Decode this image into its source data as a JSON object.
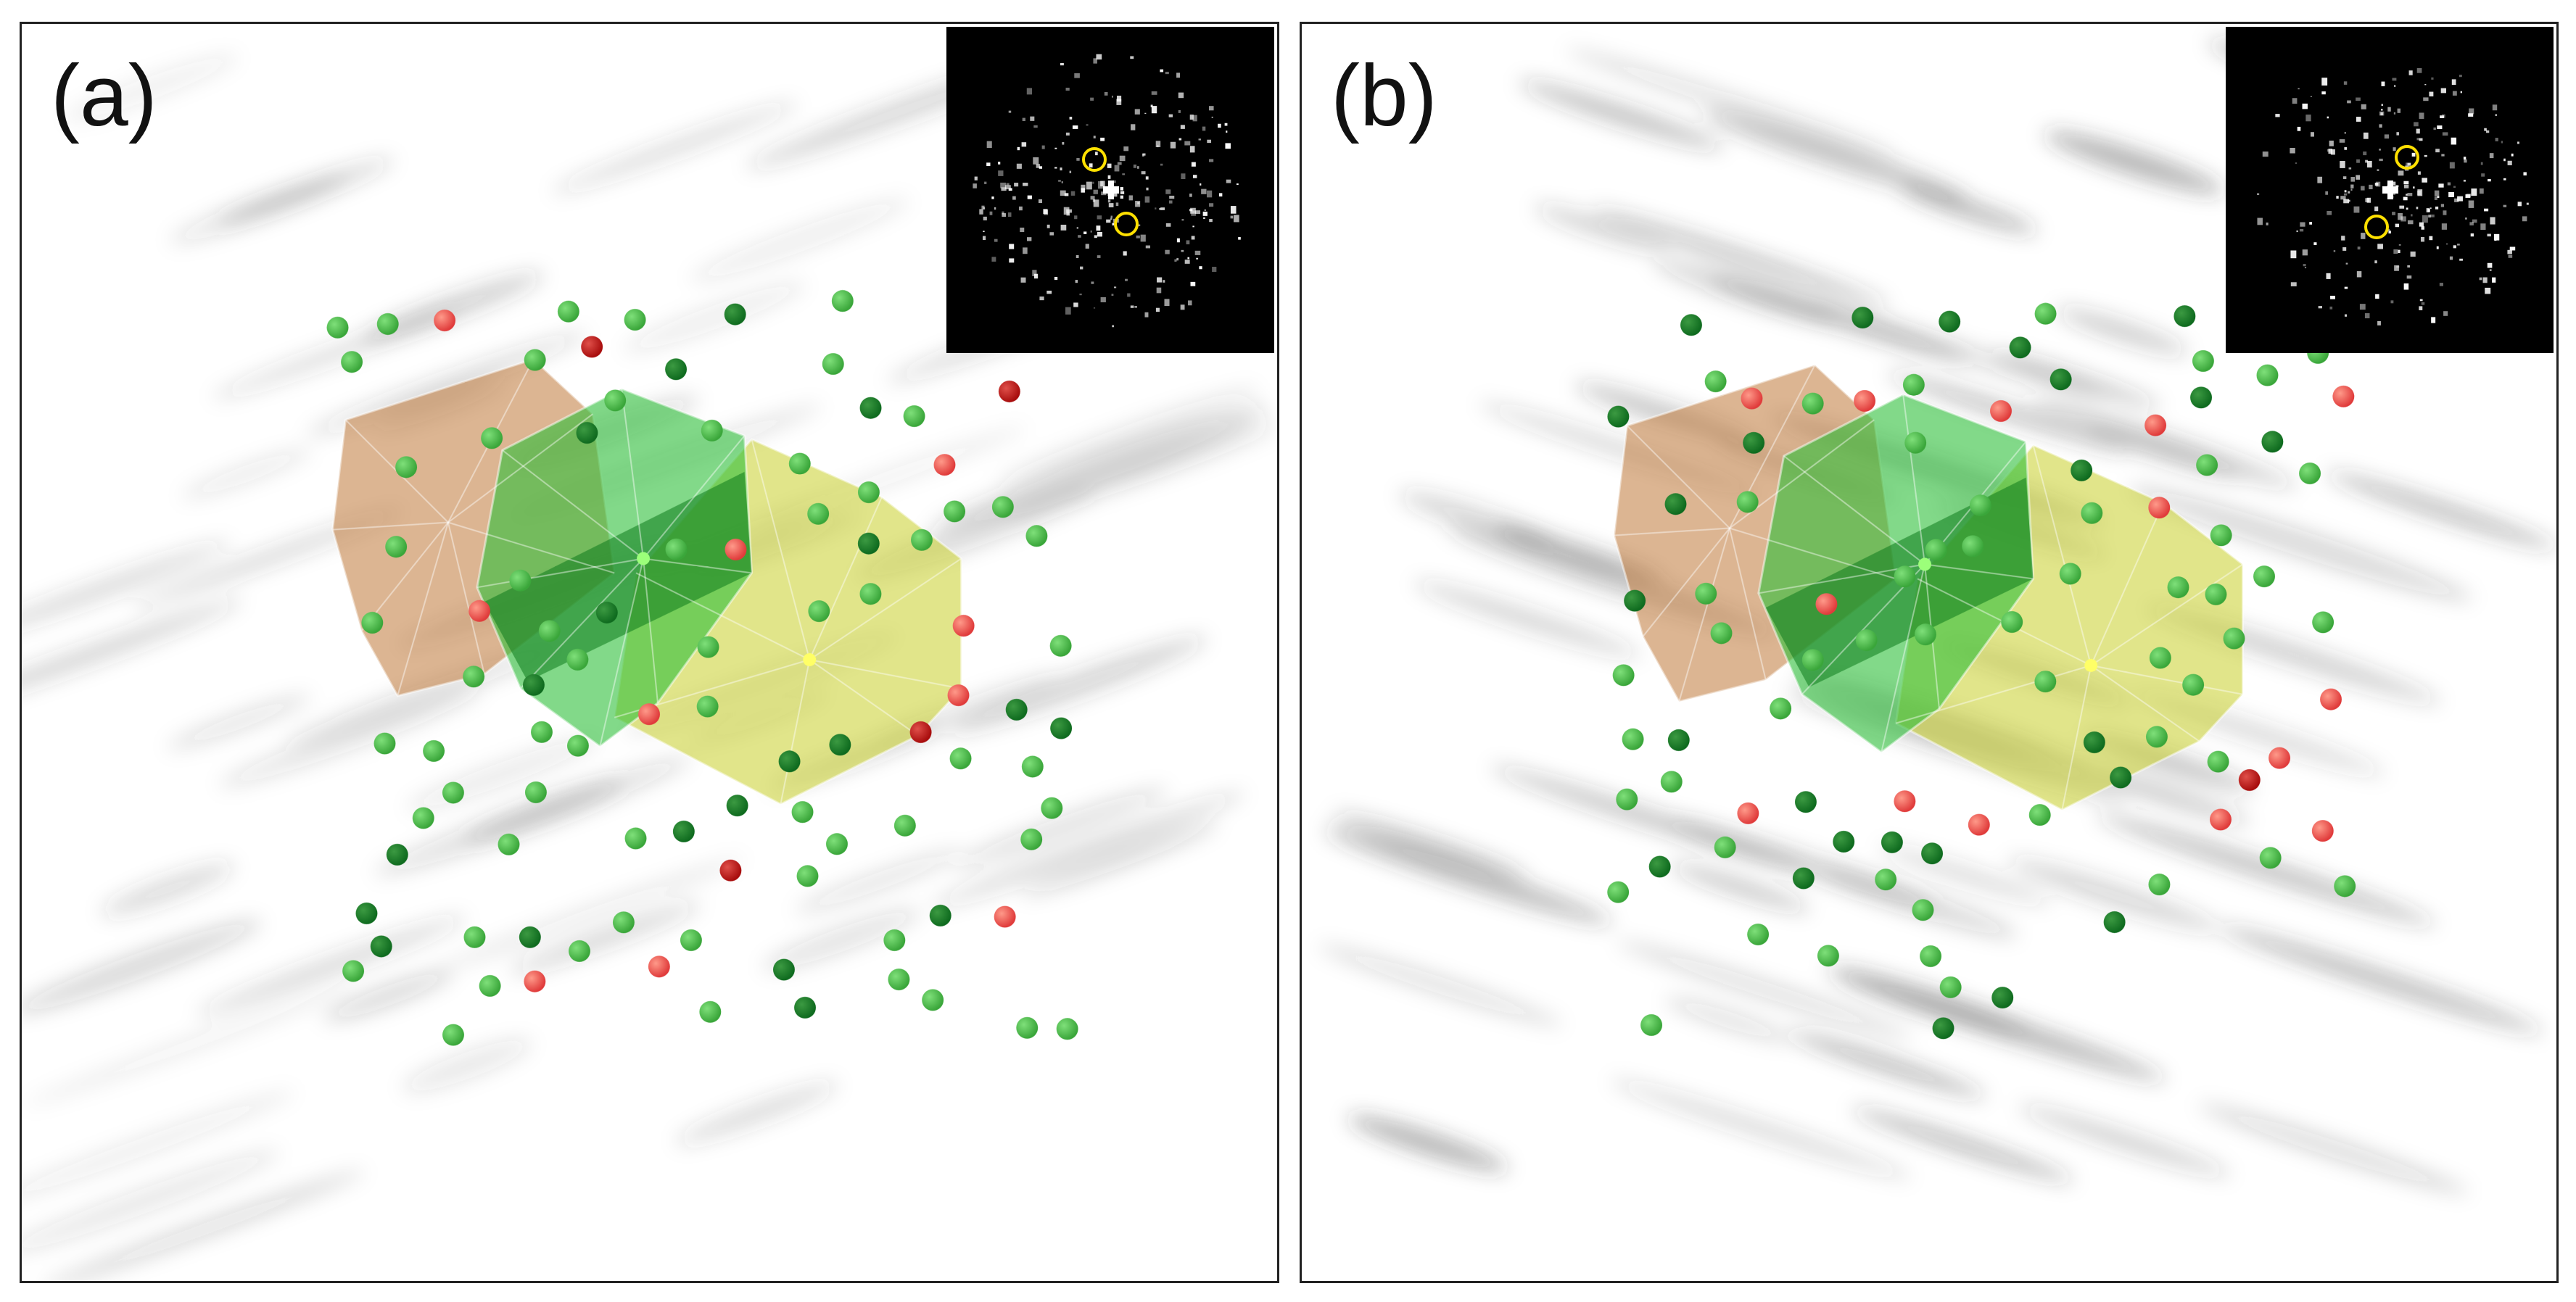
{
  "figure": {
    "panels": [
      {
        "id": "a",
        "label": "(a)",
        "inset": "diffraction-pattern",
        "background": "streaked-shadow"
      },
      {
        "id": "b",
        "label": "(b)",
        "inset": "diffraction-pattern",
        "background": "streaked-shadow"
      }
    ]
  },
  "colors": {
    "atom_green": "#3aa63a",
    "atom_dark_green": "#0f6b1f",
    "atom_red": "#e03b3b",
    "atom_dark_red": "#a80d0d",
    "poly_orange": "#c07838",
    "poly_green": "#2fbf3a",
    "poly_yellow": "#c9cf2a",
    "inset_circle": "#ffe000",
    "frame": "#222222"
  }
}
